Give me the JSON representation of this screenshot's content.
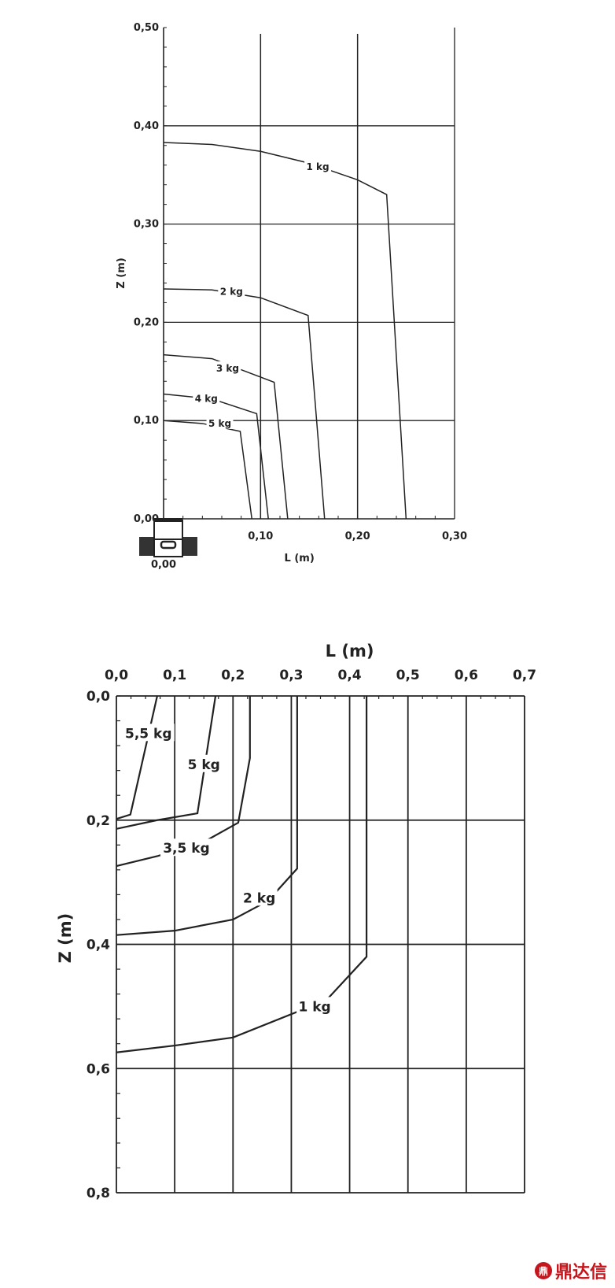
{
  "chart_data": [
    {
      "type": "line",
      "xlabel": "L (m)",
      "ylabel": "Z (m)",
      "xlim": [
        0,
        0.3
      ],
      "ylim": [
        0,
        0.5
      ],
      "xticks": [
        "0,00",
        "0,10",
        "0,20",
        "0,30"
      ],
      "yticks": [
        "0,00",
        "0,10",
        "0,20",
        "0,30",
        "0,40",
        "0,50"
      ],
      "x_origin_label": "0,00",
      "grid": true,
      "series": [
        {
          "name": "1 kg",
          "points": [
            [
              0,
              0.383
            ],
            [
              0.05,
              0.381
            ],
            [
              0.1,
              0.374
            ],
            [
              0.15,
              0.362
            ],
            [
              0.2,
              0.345
            ],
            [
              0.23,
              0.33
            ],
            [
              0.25,
              0
            ]
          ],
          "label_at": [
            0.159,
            0.358
          ]
        },
        {
          "name": "2 kg",
          "points": [
            [
              0,
              0.234
            ],
            [
              0.05,
              0.233
            ],
            [
              0.1,
              0.225
            ],
            [
              0.149,
              0.207
            ],
            [
              0.166,
              0
            ]
          ],
          "label_at": [
            0.07,
            0.231
          ]
        },
        {
          "name": "3 kg",
          "points": [
            [
              0,
              0.167
            ],
            [
              0.05,
              0.163
            ],
            [
              0.114,
              0.139
            ],
            [
              0.128,
              0
            ]
          ],
          "label_at": [
            0.066,
            0.153
          ]
        },
        {
          "name": "4 kg",
          "points": [
            [
              0,
              0.127
            ],
            [
              0.05,
              0.122
            ],
            [
              0.096,
              0.107
            ],
            [
              0.108,
              0
            ]
          ],
          "label_at": [
            0.044,
            0.122
          ]
        },
        {
          "name": "5 kg",
          "points": [
            [
              0,
              0.1
            ],
            [
              0.04,
              0.097
            ],
            [
              0.079,
              0.089
            ],
            [
              0.091,
              0
            ]
          ],
          "label_at": [
            0.058,
            0.097
          ]
        }
      ]
    },
    {
      "type": "line",
      "xlabel": "L (m)",
      "ylabel": "Z (m)",
      "xlim": [
        0,
        0.7
      ],
      "ylim": [
        0,
        0.8
      ],
      "y_inverted": true,
      "x_axis_position": "top",
      "xticks": [
        "0,0",
        "0,1",
        "0,2",
        "0,3",
        "0,4",
        "0,5",
        "0,6",
        "0,7"
      ],
      "yticks": [
        "0,0",
        "0,2",
        "0,4",
        "0,6",
        "0,8"
      ],
      "grid": true,
      "series": [
        {
          "name": "5,5 kg",
          "points": [
            [
              0.07,
              0
            ],
            [
              0.024,
              0.191
            ],
            [
              0,
              0.198
            ]
          ],
          "label_at": [
            0.055,
            0.06
          ]
        },
        {
          "name": "5 kg",
          "points": [
            [
              0.17,
              0
            ],
            [
              0.139,
              0.189
            ],
            [
              0.07,
              0.2
            ],
            [
              0,
              0.214
            ]
          ],
          "label_at": [
            0.15,
            0.11
          ]
        },
        {
          "name": "3,5 kg",
          "points": [
            [
              0.229,
              0
            ],
            [
              0.229,
              0.1
            ],
            [
              0.209,
              0.204
            ],
            [
              0.15,
              0.235
            ],
            [
              0.07,
              0.258
            ],
            [
              0,
              0.274
            ]
          ],
          "label_at": [
            0.12,
            0.245
          ]
        },
        {
          "name": "2 kg",
          "points": [
            [
              0.31,
              0
            ],
            [
              0.31,
              0.278
            ],
            [
              0.26,
              0.33
            ],
            [
              0.2,
              0.36
            ],
            [
              0.1,
              0.378
            ],
            [
              0,
              0.385
            ]
          ],
          "label_at": [
            0.245,
            0.325
          ]
        },
        {
          "name": "1 kg",
          "points": [
            [
              0.429,
              0
            ],
            [
              0.429,
              0.42
            ],
            [
              0.36,
              0.49
            ],
            [
              0.2,
              0.55
            ],
            [
              0.1,
              0.563
            ],
            [
              0,
              0.574
            ]
          ],
          "label_at": [
            0.34,
            0.5
          ]
        }
      ]
    }
  ],
  "logo": {
    "text": "鼎达信",
    "mark": "鼎"
  }
}
